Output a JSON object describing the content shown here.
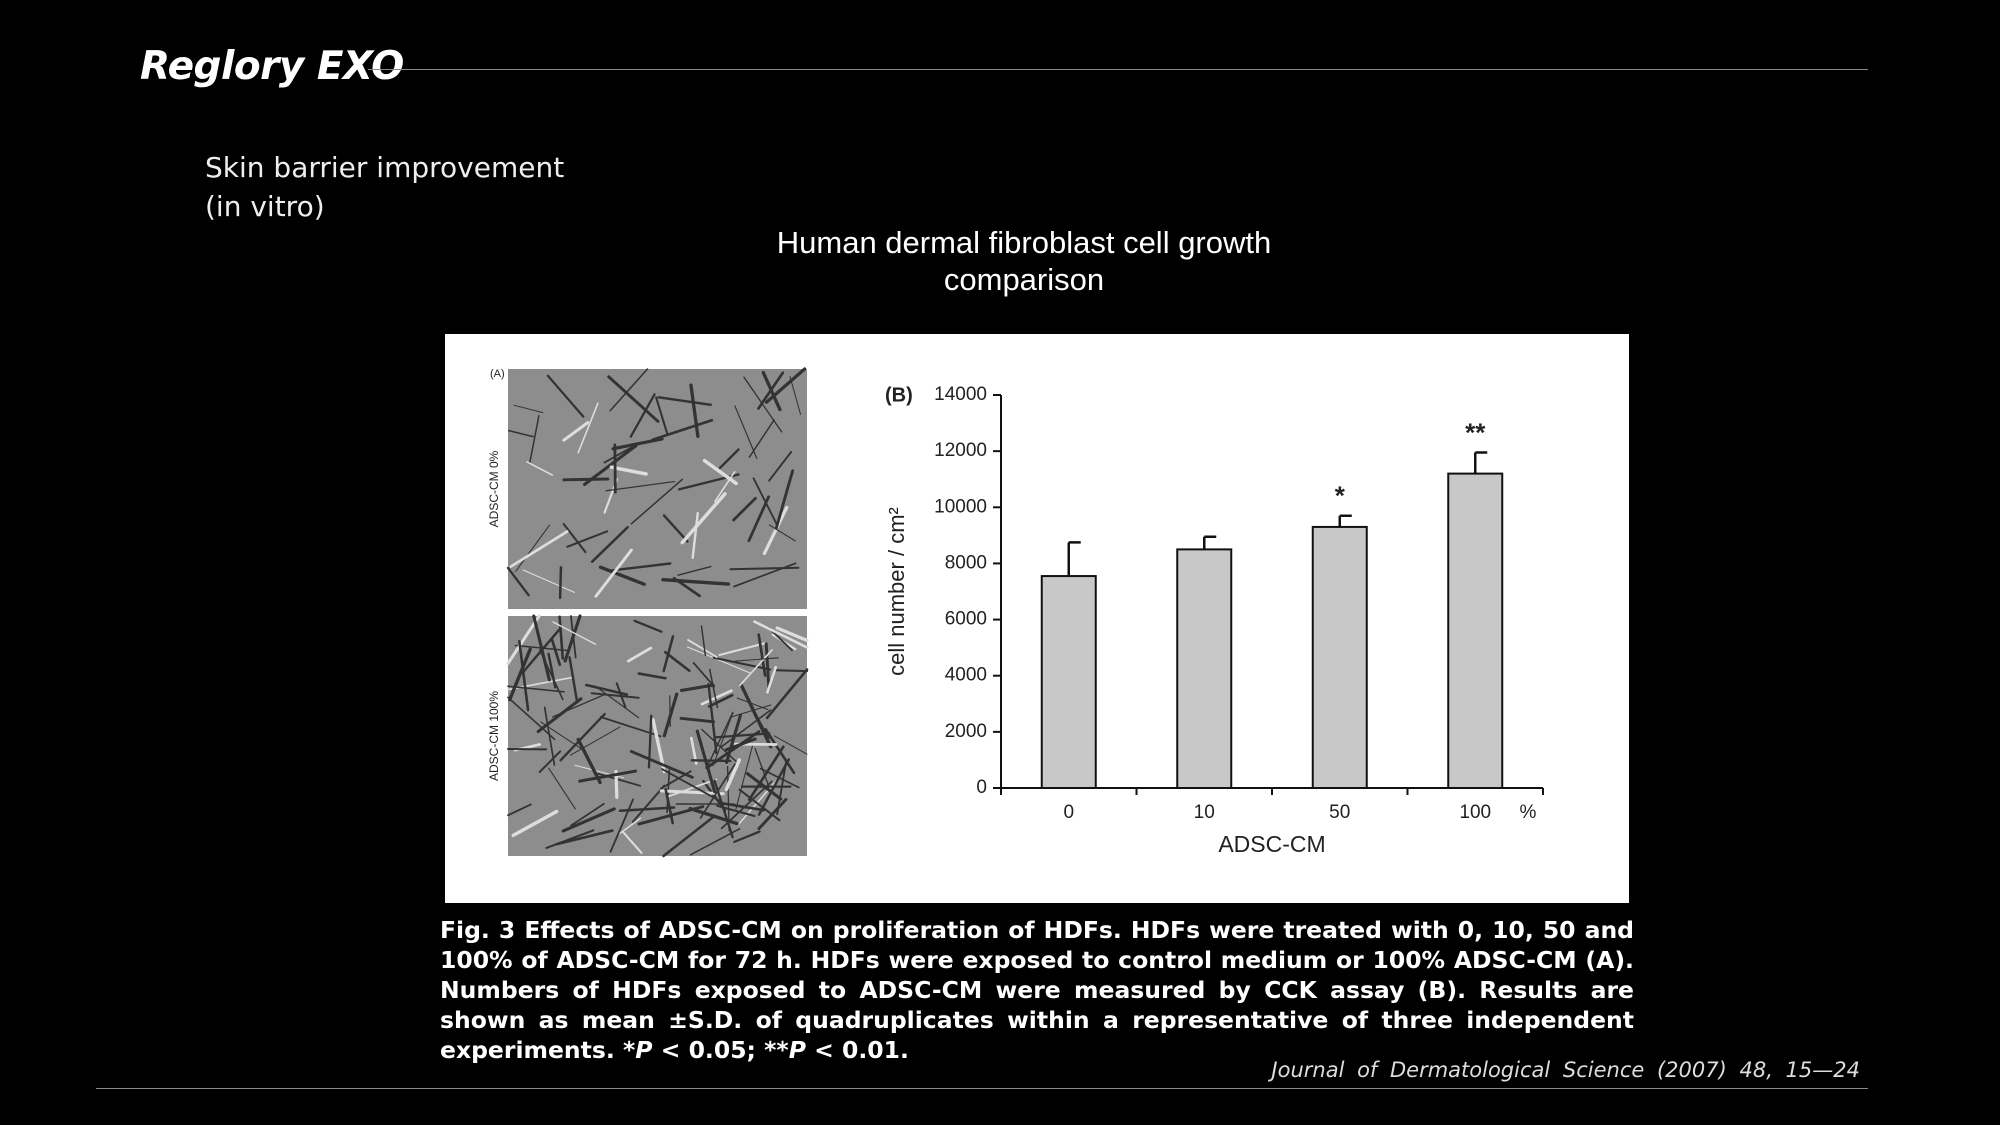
{
  "header": {
    "title": "Reglory EXO"
  },
  "subtitle": [
    "Skin barrier improvement",
    "(in vitro)"
  ],
  "chart_title": [
    "Human dermal fibroblast cell growth",
    "comparison"
  ],
  "panel_a": {
    "label": "(A)",
    "rows": [
      "ADSC-CM 0%",
      "ADSC-CM 100%"
    ]
  },
  "chart_data": {
    "type": "bar",
    "panel_label": "(B)",
    "categories": [
      "0",
      "10",
      "50",
      "100"
    ],
    "unit": "%",
    "values": [
      7550,
      8500,
      9300,
      11200
    ],
    "errors": [
      1200,
      450,
      400,
      750
    ],
    "annotations": [
      null,
      null,
      "*",
      "**"
    ],
    "color": "#c8c8c8",
    "ylim": [
      0,
      14000
    ],
    "yticks": [
      0,
      2000,
      4000,
      6000,
      8000,
      10000,
      12000,
      14000
    ],
    "ylabel": "cell number / cm²",
    "xlabel": "ADSC-CM"
  },
  "caption": [
    "Fig. 3 Effects of ADSC-CM on proliferation of HDFs. HDFs were treated with 0, 10, 50 and 100% of ADSC-CM for 72 h. HDFs were exposed to control medium or 100% ADSC-CM (A). Numbers of HDFs exposed to ADSC-CM were measured by CCK assay (B). Results are shown as mean ±S.D. of quadruplicates within a representative of three independent experiments. *",
    "P",
    " < 0.05; **",
    "P",
    " < 0.01."
  ],
  "citation": "Journal of Dermatological Science (2007) 48, 15—24"
}
